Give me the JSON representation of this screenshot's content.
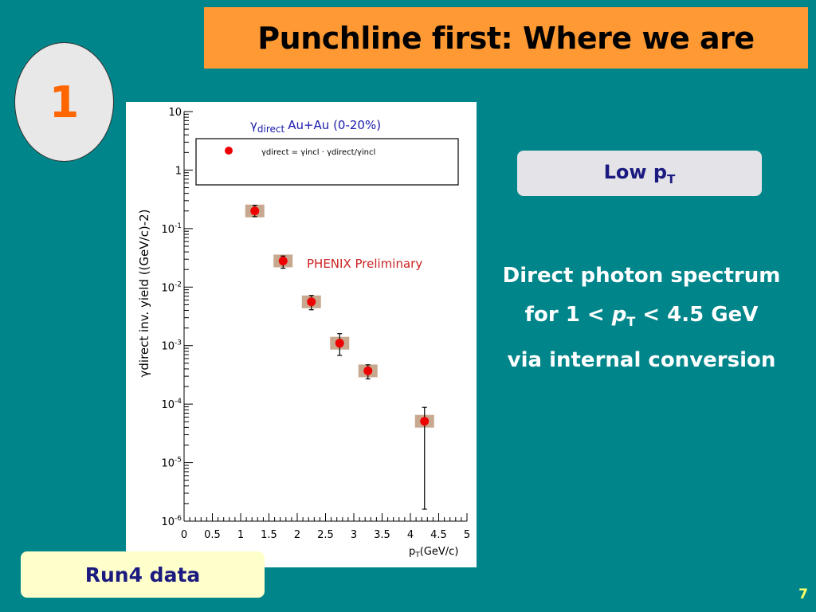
{
  "slide": {
    "title": "Punchline first: Where we are",
    "number_badge": "1",
    "page_number": "7"
  },
  "low_pt_box": {
    "label": "Low p",
    "subscript": "T"
  },
  "description": {
    "line1": "Direct photon spectrum",
    "line2_pre": "for 1 < ",
    "line2_var": "p",
    "line2_sub": "T",
    "line2_post": " < 4.5 GeV",
    "line3": "via internal conversion"
  },
  "run_box": {
    "label": "Run4 data"
  },
  "colors": {
    "background": "#00868a",
    "title_bar": "#ff9933",
    "badge_number": "#ff6600",
    "box_text": "#1a1a80",
    "marker": "#ee0000",
    "syst_box": "#c8a98f",
    "preliminary": "#cc2222",
    "legend_title": "#1a1aaa",
    "page_number": "#ffff66"
  },
  "chart_data": {
    "type": "scatter",
    "yscale": "log",
    "xlim": [
      0,
      5
    ],
    "ylim": [
      1e-06,
      10
    ],
    "xlabel_main": "p",
    "xlabel_sub": "T",
    "xlabel_unit": "(GeV/c)",
    "ylabel": "γdirect inv. yield ((GeV/c)-2)",
    "x_ticks": [
      "0",
      "0.5",
      "1",
      "1.5",
      "2",
      "2.5",
      "3",
      "3.5",
      "4",
      "4.5",
      "5"
    ],
    "y_ticks": [
      {
        "base": "10",
        "exp": ""
      },
      {
        "base": "1",
        "exp": ""
      },
      {
        "base": "10",
        "exp": "-1"
      },
      {
        "base": "10",
        "exp": "-2"
      },
      {
        "base": "10",
        "exp": "-3"
      },
      {
        "base": "10",
        "exp": "-4"
      },
      {
        "base": "10",
        "exp": "-5"
      },
      {
        "base": "10",
        "exp": "-6"
      }
    ],
    "legend_title_symbol": "γ",
    "legend_title_sub": "direct",
    "legend_title_text": "Au+Au (0-20%)",
    "legend_formula": "γdirect = γincl · γdirect/γincl",
    "annotation": "PHENIX Preliminary",
    "legend_position": "top",
    "series": [
      {
        "points": [
          {
            "x": 1.25,
            "y": 0.2,
            "ylo": 0.16,
            "yhi": 0.25
          },
          {
            "x": 1.75,
            "y": 0.028,
            "ylo": 0.021,
            "yhi": 0.034
          },
          {
            "x": 2.25,
            "y": 0.0056,
            "ylo": 0.0041,
            "yhi": 0.0072
          },
          {
            "x": 2.75,
            "y": 0.0011,
            "ylo": 0.00068,
            "yhi": 0.0016
          },
          {
            "x": 3.25,
            "y": 0.00037,
            "ylo": 0.00027,
            "yhi": 0.00047
          },
          {
            "x": 4.25,
            "y": 5.1e-05,
            "ylo": 1.6e-06,
            "yhi": 8.8e-05
          }
        ]
      }
    ]
  }
}
